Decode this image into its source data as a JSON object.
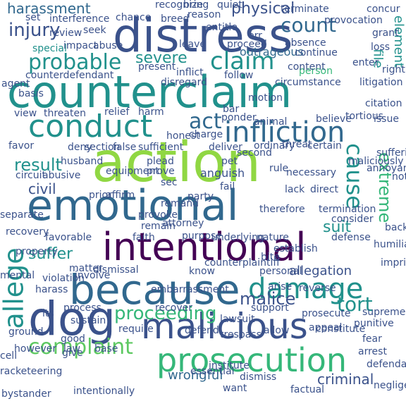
{
  "palette": {
    "background": "#ffffff",
    "dark_purple": "#440154",
    "indigo": "#3b528b",
    "blue": "#31688e",
    "teal": "#21918c",
    "green": "#35b779",
    "light_green": "#5ec962",
    "lime": "#90d743",
    "yellow_green": "#b5de2b",
    "yellow": "#fde725"
  },
  "words": {
    "action": "action",
    "counterclaim": "counterclaim",
    "distress": "distress",
    "emotional": "emotional",
    "because": "because",
    "intentional": "intentional",
    "dog": "dog",
    "malicious": "malicious",
    "prosecution": "prosecution",
    "conduct": "conduct",
    "infliction": "infliction",
    "damage": "damage",
    "allege": "allege",
    "complaint": "complaint",
    "proceeding": "proceeding",
    "probable": "probable",
    "claim": "claim",
    "injury": "injury",
    "count": "count",
    "physical": "physical",
    "harassment": "harassment",
    "cause": "cause",
    "result": "result",
    "extreme": "extreme",
    "tort": "tort",
    "malice": "malice",
    "suit": "suit",
    "civil": "civil",
    "suffer": "suffer",
    "severe": "severe",
    "outrageous": "outrageous",
    "act": "act",
    "wrongful": "wrongful",
    "criminal": "criminal",
    "allegation": "allegation",
    "counterdefendant": "counterdefendant",
    "special": "special",
    "element": "element",
    "file": "file",
    "person": "person",
    "right": "right",
    "inflict": "inflict",
    "follow": "follow",
    "motion": "motion",
    "issue": "issue",
    "charge": "charge",
    "plead": "plead",
    "anguish": "anguish",
    "prove": "prove",
    "pet": "pet",
    "rule": "rule",
    "fail": "fail",
    "lack": "lack",
    "direct": "direct",
    "termination": "termination",
    "recovery": "recovery",
    "favorable": "favorable",
    "mental": "mental",
    "dismissal": "dismissal",
    "establish": "establish",
    "reverse": "reverse",
    "support": "support",
    "constitute": "constitute",
    "fear": "fear",
    "arrest": "arrest",
    "harass": "harass",
    "process": "process",
    "recover": "recover",
    "law": "law",
    "base": "base",
    "dismiss": "dismiss",
    "bystander": "bystander",
    "intentionally": "intentionally",
    "racketeering": "racketeering",
    "seek": "seek",
    "abuse": "abuse",
    "bring": "bring",
    "reason": "reason",
    "quiet": "quiet",
    "terminate": "terminate",
    "concur": "concur",
    "grant": "grant",
    "loss": "loss",
    "enter": "enter",
    "litigation": "litigation",
    "tortious": "tortious",
    "believe": "believe",
    "favor": "favor",
    "circuit": "circuit",
    "affirm": "affirm",
    "prior": "prior",
    "abusive": "abusive",
    "threaten": "threaten",
    "relief": "relief",
    "harm": "harm",
    "honest": "honest",
    "deliver": "deliver",
    "ordinary": "ordinary",
    "threat": "threat",
    "certain": "certain",
    "second": "second",
    "necessary": "necessary",
    "maliciously": "maliciously",
    "annoyance": "annoyance",
    "suffering": "suffering",
    "humiliation": "humiliation",
    "bite": "bite",
    "defense": "defense",
    "nature": "nature",
    "underlying": "underlying",
    "purpose": "purpose",
    "counterplaintiff": "counterplaintiff",
    "personal": "personal",
    "embarrassment": "embarrassment",
    "provoke": "provoke",
    "remain": "remain",
    "remand": "remand",
    "party": "party",
    "require": "require",
    "defend": "defend",
    "lawsuit": "lawsuit",
    "trespass": "trespass",
    "involve": "involve",
    "matter": "matter",
    "violation": "violation",
    "sustain": "sustain",
    "ground": "ground",
    "good": "good",
    "give": "give",
    "however": "however",
    "cell": "cell",
    "prosecute": "prosecute",
    "appeal": "appeal",
    "punitive": "punitive",
    "negligent": "negligent",
    "defendant": "defendant",
    "factual": "factual",
    "want": "want",
    "institute": "institute",
    "essential": "essential",
    "recognize": "recognize",
    "breed": "breed",
    "interference": "interference",
    "set": "set",
    "leave": "leave",
    "proceed": "proceed",
    "present": "present",
    "content": "content",
    "citation": "citation",
    "basis": "basis",
    "agent": "agent",
    "view": "view",
    "animal": "animal",
    "bar": "bar",
    "ponder": "ponder",
    "circumstance": "circumstance",
    "husband": "husband",
    "sufficient": "sufficient",
    "false": "false",
    "deny": "deny",
    "section": "section",
    "equipment": "equipment",
    "separate": "separate",
    "property": "property",
    "consider": "consider",
    "back": "back",
    "imprisonment": "imprisonment",
    "note": "note",
    "faith": "faith",
    "know": "know",
    "arise": "arise",
    "supreme": "supreme",
    "allow": "allow",
    "its": "its",
    "continue": "continue",
    "absence": "absence",
    "err": "err",
    "provocation": "provocation",
    "review": "review",
    "impact": "impact",
    "entitle": "entitle",
    "chance": "chance",
    "sec": "sec",
    "attorney": "attorney",
    "disregard": "disregard",
    "therefore": "therefore"
  }
}
